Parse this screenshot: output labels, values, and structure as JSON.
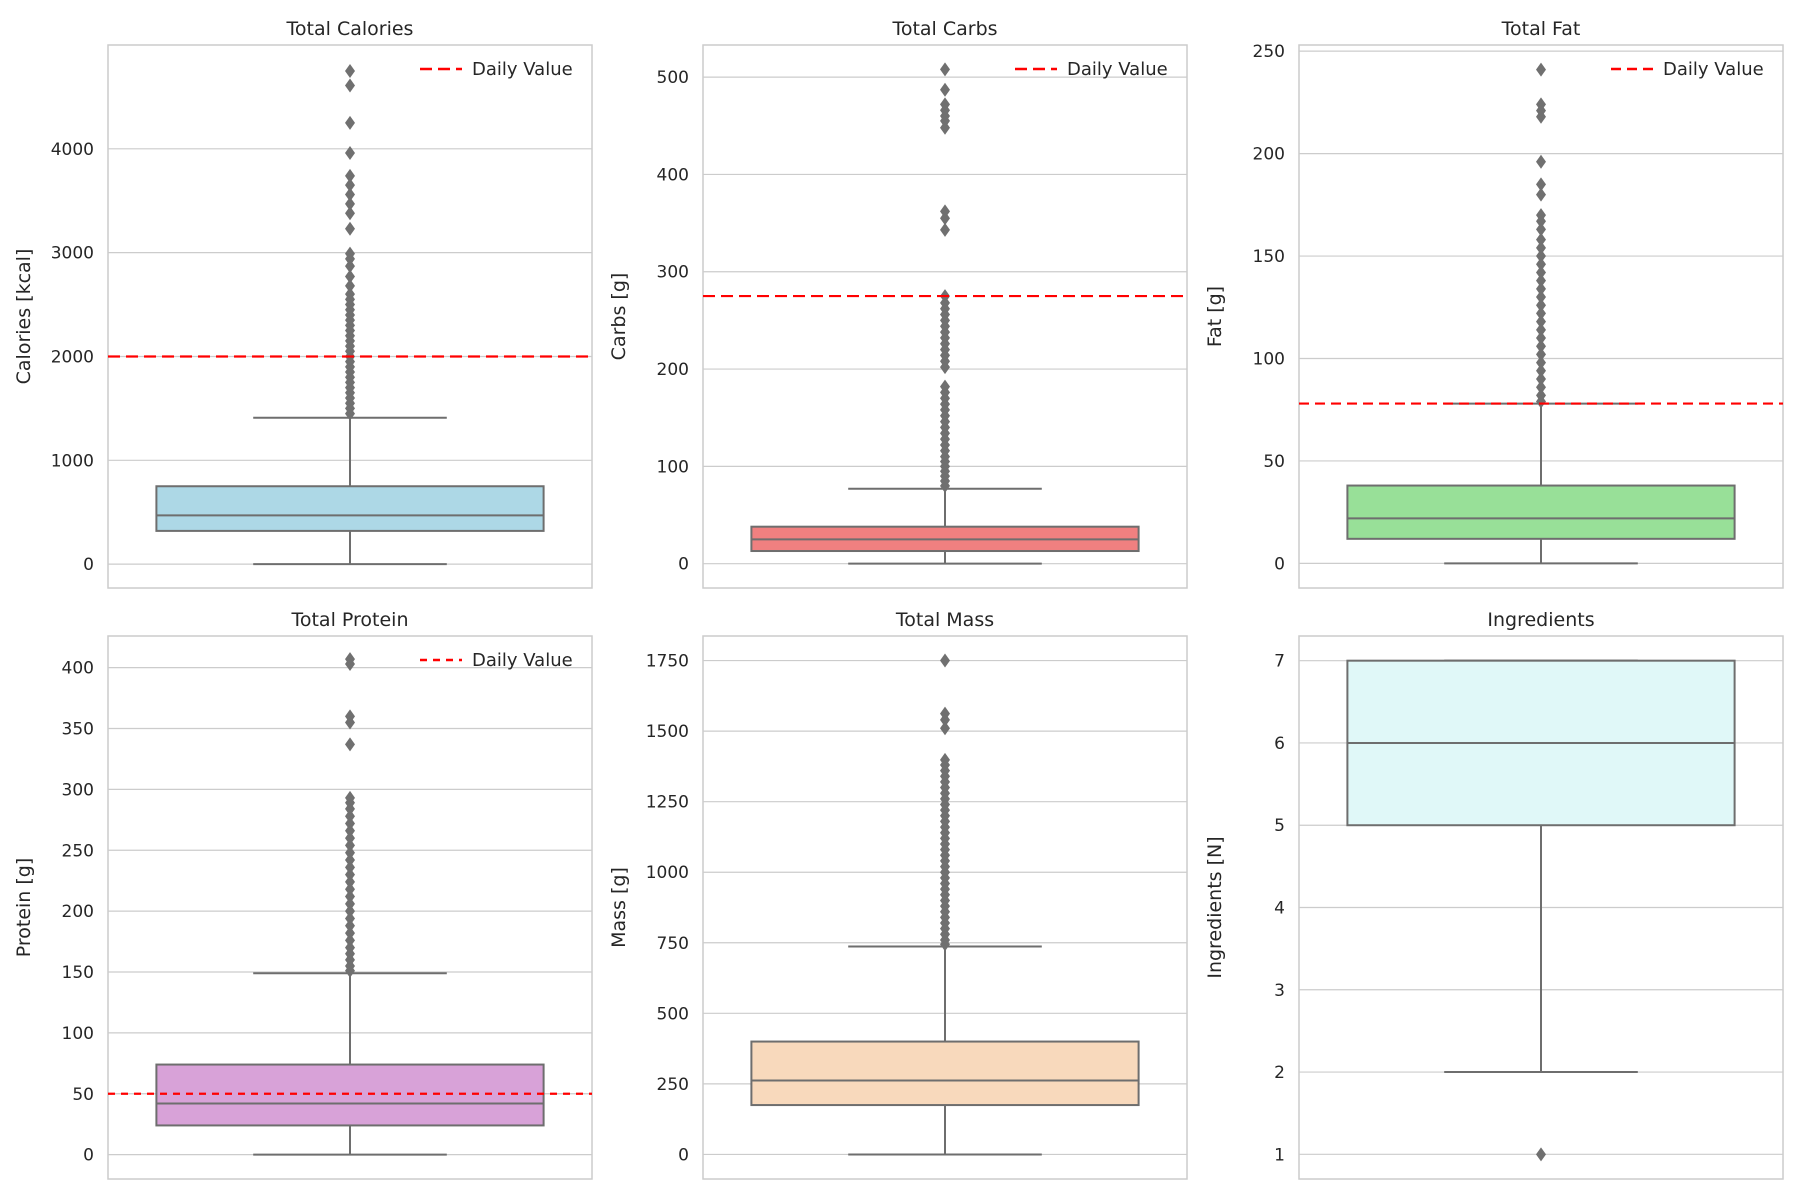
{
  "colors": {
    "daily_value_line": "#ff0000",
    "box_edge": "#6e6e6e",
    "grid": "#cccccc",
    "frame": "#cccccc"
  },
  "chart_data": [
    {
      "type": "box",
      "title": "Total Calories",
      "ylabel": "Calories [kcal]",
      "xlabel": "",
      "ylim": [
        -230,
        5000
      ],
      "yticks": [
        0,
        1000,
        2000,
        3000,
        4000
      ],
      "box_color": "#add8e6",
      "box": {
        "min": 0,
        "q1": 320,
        "median": 470,
        "q3": 750,
        "max": 1410
      },
      "outliers": [
        4750,
        4610,
        4250,
        3960,
        3740,
        3650,
        3560,
        3470,
        3380,
        3230,
        2990,
        2940,
        2870,
        2770,
        2680,
        2600,
        2550,
        2500,
        2450,
        2400,
        2350,
        2300,
        2250,
        2200,
        2150,
        2100,
        2050,
        2000,
        1950,
        1900,
        1850,
        1800,
        1750,
        1700,
        1650,
        1600,
        1550,
        1500,
        1450
      ],
      "reference_line": {
        "label": "Daily Value",
        "value": 2000,
        "dash": "long"
      },
      "legend_position": "top-right",
      "grid": true
    },
    {
      "type": "box",
      "title": "Total Carbs",
      "ylabel": "Carbs [g]",
      "xlabel": "",
      "ylim": [
        -25,
        533
      ],
      "yticks": [
        0,
        100,
        200,
        300,
        400,
        500
      ],
      "box_color": "#f08080",
      "box": {
        "min": 0,
        "q1": 13,
        "median": 25,
        "q3": 38,
        "max": 77
      },
      "outliers": [
        508,
        487,
        472,
        466,
        460,
        455,
        448,
        362,
        355,
        343,
        275,
        268,
        262,
        256,
        250,
        244,
        238,
        232,
        226,
        220,
        214,
        208,
        202,
        182,
        176,
        170,
        164,
        158,
        152,
        146,
        140,
        134,
        128,
        122,
        116,
        110,
        105,
        100,
        95,
        90,
        85,
        80
      ],
      "reference_line": {
        "label": "Daily Value",
        "value": 275,
        "dash": "long"
      },
      "legend_position": "top-right",
      "grid": true
    },
    {
      "type": "box",
      "title": "Total Fat",
      "ylabel": "Fat [g]",
      "xlabel": "",
      "ylim": [
        -12,
        253
      ],
      "yticks": [
        0,
        50,
        100,
        150,
        200,
        250
      ],
      "box_color": "#98e098",
      "box": {
        "min": 0,
        "q1": 12,
        "median": 22,
        "q3": 38,
        "max": 78
      },
      "outliers": [
        241,
        224,
        221,
        218,
        196,
        185,
        180,
        170,
        167,
        163,
        158,
        154,
        150,
        146,
        142,
        138,
        134,
        130,
        126,
        122,
        118,
        114,
        110,
        106,
        102,
        98,
        94,
        90,
        86,
        82,
        79
      ],
      "reference_line": {
        "label": "Daily Value",
        "value": 78,
        "dash": "medium"
      },
      "legend_position": "top-right",
      "grid": true
    },
    {
      "type": "box",
      "title": "Total Protein",
      "ylabel": "Protein [g]",
      "xlabel": "",
      "ylim": [
        -20,
        426
      ],
      "yticks": [
        0,
        50,
        100,
        150,
        200,
        250,
        300,
        350,
        400
      ],
      "box_color": "#d8a2d8",
      "box": {
        "min": 0,
        "q1": 24,
        "median": 42,
        "q3": 74,
        "max": 149
      },
      "outliers": [
        407,
        403,
        360,
        355,
        337,
        293,
        289,
        284,
        278,
        272,
        266,
        260,
        254,
        248,
        242,
        236,
        230,
        224,
        218,
        212,
        206,
        200,
        194,
        188,
        182,
        176,
        170,
        165,
        160,
        155,
        151
      ],
      "reference_line": {
        "label": "Daily Value",
        "value": 50,
        "dash": "short"
      },
      "legend_position": "top-right",
      "grid": true
    },
    {
      "type": "box",
      "title": "Total Mass",
      "ylabel": "Mass [g]",
      "xlabel": "",
      "ylim": [
        -87,
        1837
      ],
      "yticks": [
        0,
        250,
        500,
        750,
        1000,
        1250,
        1500,
        1750
      ],
      "tick_labels": [
        "0",
        "250",
        "500",
        "750",
        "1000",
        "1250",
        "1500",
        "1750"
      ],
      "box_color": "#f8d9bc",
      "box": {
        "min": 0,
        "q1": 175,
        "median": 262,
        "q3": 400,
        "max": 737
      },
      "outliers": [
        1750,
        1562,
        1540,
        1510,
        1398,
        1380,
        1360,
        1340,
        1320,
        1300,
        1280,
        1260,
        1240,
        1220,
        1200,
        1180,
        1160,
        1140,
        1120,
        1100,
        1080,
        1060,
        1040,
        1020,
        1000,
        980,
        960,
        940,
        920,
        900,
        880,
        860,
        840,
        820,
        800,
        780,
        760,
        745
      ],
      "legend_position": "",
      "grid": true
    },
    {
      "type": "box",
      "title": "Ingredients",
      "ylabel": "Ingredients [N]",
      "xlabel": "",
      "ylim": [
        0.7,
        7.3
      ],
      "yticks": [
        1,
        2,
        3,
        4,
        5,
        6,
        7
      ],
      "box_color": "#e0f8f8",
      "box": {
        "min": 2,
        "q1": 5,
        "median": 6,
        "q3": 7,
        "max": 7
      },
      "outliers": [
        1
      ],
      "legend_position": "",
      "grid": true
    }
  ]
}
